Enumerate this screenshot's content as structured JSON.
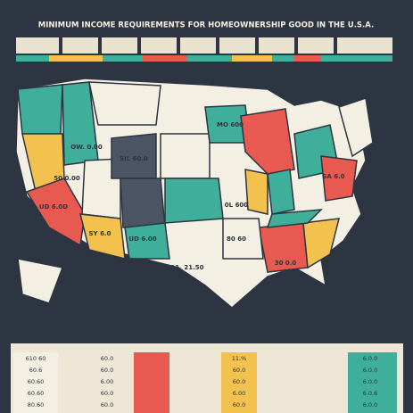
{
  "header": {
    "title": "MINIMUM INCOME REQUIREMENTS FOR HOMEOWNERSHIP GOOD IN THE U.S.A."
  },
  "map": {
    "labels": [
      "OW. 0.00",
      "50 0.00",
      "SIL 60.0",
      "UD 6.00",
      "SY 6.0",
      "0L 600",
      "30 0.0",
      "SA 6.0",
      "MO 600",
      "80 60",
      "UD 6.0D",
      "11. 21.50"
    ]
  },
  "table": {
    "rows": [
      [
        "610 60",
        "60.0",
        "11.%",
        "6.0.0"
      ],
      [
        "60.6",
        "60.0",
        "60.0",
        "6.0.0"
      ],
      [
        "60.60",
        "6.00",
        "60.0",
        "6.0.0"
      ],
      [
        "60.60",
        "60.0",
        "6.00",
        "6.0.6"
      ],
      [
        "80.60",
        "60.0",
        "60.0",
        "6.0.0"
      ]
    ]
  }
}
